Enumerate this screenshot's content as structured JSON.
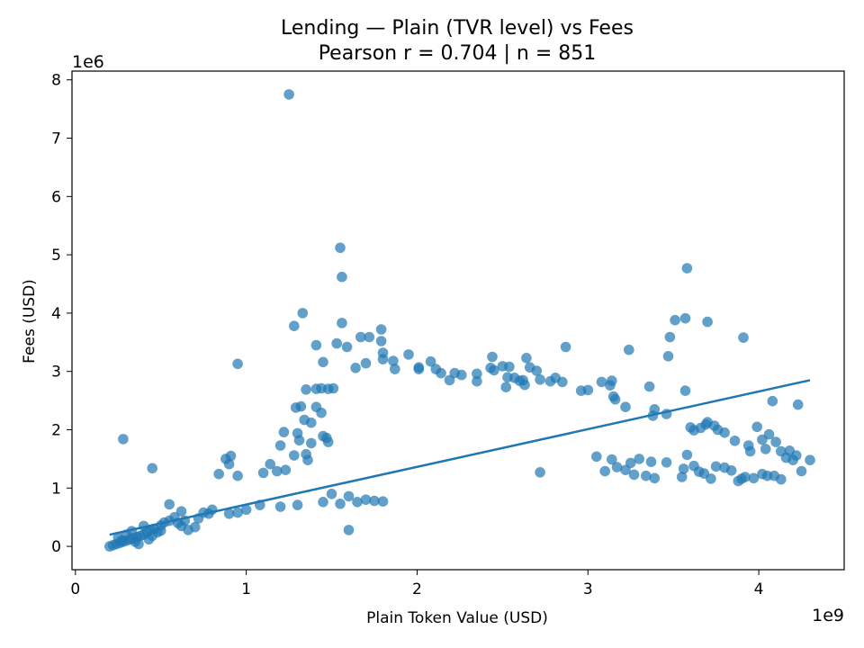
{
  "chart_data": {
    "type": "scatter",
    "title": "Lending — Plain (TVR level) vs Fees",
    "subtitle": "Pearson r = 0.704 | n = 851",
    "xlabel": "Plain Token Value (USD)",
    "ylabel": "Fees (USD)",
    "x_exponent_label": "1e9",
    "y_exponent_label": "1e6",
    "x_scale": 1000000000,
    "y_scale": 1000000,
    "xlim": [
      -0.02,
      4.5
    ],
    "ylim": [
      -0.4,
      8.15
    ],
    "x_ticks": [
      0,
      1,
      2,
      3,
      4
    ],
    "x_tick_labels": [
      "0",
      "1",
      "2",
      "3",
      "4"
    ],
    "y_ticks": [
      0,
      1,
      2,
      3,
      4,
      5,
      6,
      7,
      8
    ],
    "y_tick_labels": [
      "0",
      "1",
      "2",
      "3",
      "4",
      "5",
      "6",
      "7",
      "8"
    ],
    "grid": false,
    "point_color": "#1f77b4",
    "point_alpha": 0.7,
    "trend_line": {
      "x": [
        0.2,
        4.3
      ],
      "y": [
        0.2,
        2.85
      ],
      "color": "#1f77b4"
    },
    "series": [
      {
        "points": [
          [
            1.25,
            7.75
          ],
          [
            1.55,
            5.12
          ],
          [
            1.56,
            4.62
          ],
          [
            0.95,
            3.13
          ],
          [
            0.28,
            1.84
          ],
          [
            0.45,
            1.34
          ],
          [
            2.72,
            1.27
          ],
          [
            1.6,
            0.28
          ],
          [
            1.33,
            4.0
          ],
          [
            1.28,
            3.78
          ],
          [
            1.56,
            3.83
          ],
          [
            1.53,
            3.48
          ],
          [
            1.59,
            3.42
          ],
          [
            1.67,
            3.59
          ],
          [
            1.72,
            3.59
          ],
          [
            1.79,
            3.72
          ],
          [
            1.79,
            3.52
          ],
          [
            1.41,
            3.45
          ],
          [
            1.45,
            3.16
          ],
          [
            1.7,
            3.14
          ],
          [
            1.64,
            3.06
          ],
          [
            1.8,
            3.32
          ],
          [
            1.8,
            3.21
          ],
          [
            1.86,
            3.18
          ],
          [
            1.87,
            3.04
          ],
          [
            1.95,
            3.29
          ],
          [
            2.01,
            3.07
          ],
          [
            2.01,
            3.04
          ],
          [
            2.08,
            3.17
          ],
          [
            2.11,
            3.04
          ],
          [
            2.14,
            2.97
          ],
          [
            2.19,
            2.85
          ],
          [
            2.22,
            2.97
          ],
          [
            2.26,
            2.94
          ],
          [
            2.35,
            2.96
          ],
          [
            2.35,
            2.83
          ],
          [
            2.43,
            3.06
          ],
          [
            2.44,
            3.25
          ],
          [
            2.45,
            3.02
          ],
          [
            2.5,
            3.09
          ],
          [
            2.52,
            2.73
          ],
          [
            2.53,
            2.9
          ],
          [
            2.54,
            3.08
          ],
          [
            2.57,
            2.89
          ],
          [
            2.6,
            2.84
          ],
          [
            2.62,
            2.85
          ],
          [
            2.63,
            2.77
          ],
          [
            2.64,
            3.23
          ],
          [
            2.66,
            3.07
          ],
          [
            2.7,
            3.01
          ],
          [
            2.72,
            2.86
          ],
          [
            2.78,
            2.83
          ],
          [
            2.81,
            2.89
          ],
          [
            2.85,
            2.82
          ],
          [
            2.87,
            3.42
          ],
          [
            2.96,
            2.67
          ],
          [
            3.0,
            2.68
          ],
          [
            3.08,
            2.82
          ],
          [
            3.13,
            2.76
          ],
          [
            3.14,
            2.84
          ],
          [
            3.15,
            2.57
          ],
          [
            3.16,
            2.52
          ],
          [
            3.22,
            2.39
          ],
          [
            3.24,
            3.37
          ],
          [
            3.36,
            2.74
          ],
          [
            3.38,
            2.24
          ],
          [
            3.39,
            2.35
          ],
          [
            3.46,
            2.27
          ],
          [
            3.47,
            3.26
          ],
          [
            3.48,
            3.59
          ],
          [
            3.51,
            3.88
          ],
          [
            3.57,
            3.91
          ],
          [
            3.58,
            4.77
          ],
          [
            3.57,
            2.67
          ],
          [
            3.6,
            2.04
          ],
          [
            3.62,
            1.99
          ],
          [
            3.66,
            2.03
          ],
          [
            3.69,
            2.09
          ],
          [
            3.7,
            2.13
          ],
          [
            3.7,
            3.85
          ],
          [
            3.74,
            2.07
          ],
          [
            3.76,
            2.0
          ],
          [
            3.8,
            1.95
          ],
          [
            3.86,
            1.81
          ],
          [
            3.91,
            3.58
          ],
          [
            3.94,
            1.73
          ],
          [
            3.95,
            1.63
          ],
          [
            3.99,
            2.05
          ],
          [
            4.02,
            1.83
          ],
          [
            4.04,
            1.67
          ],
          [
            4.06,
            1.92
          ],
          [
            4.08,
            2.49
          ],
          [
            4.1,
            1.79
          ],
          [
            4.13,
            1.63
          ],
          [
            4.16,
            1.52
          ],
          [
            4.18,
            1.64
          ],
          [
            4.2,
            1.48
          ],
          [
            4.22,
            1.56
          ],
          [
            4.23,
            2.43
          ],
          [
            4.25,
            1.29
          ],
          [
            4.3,
            1.48
          ],
          [
            3.05,
            1.54
          ],
          [
            3.1,
            1.29
          ],
          [
            3.14,
            1.49
          ],
          [
            3.17,
            1.36
          ],
          [
            3.22,
            1.31
          ],
          [
            3.25,
            1.43
          ],
          [
            3.27,
            1.23
          ],
          [
            3.3,
            1.5
          ],
          [
            3.34,
            1.21
          ],
          [
            3.37,
            1.45
          ],
          [
            3.39,
            1.17
          ],
          [
            3.46,
            1.44
          ],
          [
            3.55,
            1.19
          ],
          [
            3.56,
            1.33
          ],
          [
            3.58,
            1.57
          ],
          [
            3.62,
            1.38
          ],
          [
            3.65,
            1.28
          ],
          [
            3.68,
            1.25
          ],
          [
            3.72,
            1.16
          ],
          [
            3.75,
            1.37
          ],
          [
            3.8,
            1.35
          ],
          [
            3.84,
            1.3
          ],
          [
            3.88,
            1.12
          ],
          [
            3.9,
            1.16
          ],
          [
            3.92,
            1.19
          ],
          [
            3.97,
            1.17
          ],
          [
            4.02,
            1.24
          ],
          [
            4.05,
            1.21
          ],
          [
            4.09,
            1.21
          ],
          [
            4.13,
            1.15
          ],
          [
            1.41,
            2.7
          ],
          [
            1.44,
            2.71
          ],
          [
            1.48,
            2.7
          ],
          [
            1.51,
            2.71
          ],
          [
            1.35,
            2.69
          ],
          [
            1.38,
            2.12
          ],
          [
            1.44,
            2.29
          ],
          [
            1.41,
            2.39
          ],
          [
            1.29,
            2.38
          ],
          [
            1.32,
            2.4
          ],
          [
            1.34,
            2.17
          ],
          [
            1.3,
            1.94
          ],
          [
            1.22,
            1.96
          ],
          [
            1.2,
            1.73
          ],
          [
            1.45,
            1.89
          ],
          [
            1.47,
            1.86
          ],
          [
            1.48,
            1.79
          ],
          [
            1.38,
            1.77
          ],
          [
            1.31,
            1.82
          ],
          [
            1.28,
            1.56
          ],
          [
            1.36,
            1.48
          ],
          [
            0.88,
            1.5
          ],
          [
            0.91,
            1.55
          ],
          [
            0.9,
            1.41
          ],
          [
            0.84,
            1.24
          ],
          [
            0.95,
            1.21
          ],
          [
            1.14,
            1.41
          ],
          [
            1.1,
            1.26
          ],
          [
            1.18,
            1.29
          ],
          [
            1.23,
            1.31
          ],
          [
            1.35,
            1.58
          ],
          [
            0.9,
            0.56
          ],
          [
            0.95,
            0.58
          ],
          [
            1.0,
            0.63
          ],
          [
            1.08,
            0.71
          ],
          [
            1.2,
            0.68
          ],
          [
            1.3,
            0.71
          ],
          [
            1.45,
            0.76
          ],
          [
            1.55,
            0.73
          ],
          [
            1.65,
            0.76
          ],
          [
            1.7,
            0.8
          ],
          [
            1.75,
            0.78
          ],
          [
            1.8,
            0.77
          ],
          [
            1.6,
            0.86
          ],
          [
            1.5,
            0.9
          ],
          [
            0.2,
            0.0
          ],
          [
            0.22,
            0.02
          ],
          [
            0.24,
            0.04
          ],
          [
            0.26,
            0.06
          ],
          [
            0.28,
            0.08
          ],
          [
            0.3,
            0.1
          ],
          [
            0.32,
            0.12
          ],
          [
            0.34,
            0.14
          ],
          [
            0.36,
            0.16
          ],
          [
            0.38,
            0.18
          ],
          [
            0.4,
            0.2
          ],
          [
            0.42,
            0.25
          ],
          [
            0.44,
            0.28
          ],
          [
            0.46,
            0.3
          ],
          [
            0.48,
            0.24
          ],
          [
            0.5,
            0.36
          ],
          [
            0.52,
            0.41
          ],
          [
            0.55,
            0.44
          ],
          [
            0.58,
            0.5
          ],
          [
            0.6,
            0.4
          ],
          [
            0.62,
            0.35
          ],
          [
            0.64,
            0.44
          ],
          [
            0.66,
            0.28
          ],
          [
            0.7,
            0.33
          ],
          [
            0.72,
            0.48
          ],
          [
            0.75,
            0.58
          ],
          [
            0.78,
            0.56
          ],
          [
            0.8,
            0.63
          ],
          [
            0.55,
            0.72
          ],
          [
            0.62,
            0.6
          ],
          [
            0.3,
            0.2
          ],
          [
            0.35,
            0.08
          ],
          [
            0.4,
            0.35
          ],
          [
            0.45,
            0.18
          ],
          [
            0.5,
            0.27
          ],
          [
            0.25,
            0.15
          ],
          [
            0.33,
            0.26
          ],
          [
            0.27,
            0.1
          ],
          [
            0.37,
            0.04
          ],
          [
            0.43,
            0.12
          ]
        ]
      }
    ]
  }
}
